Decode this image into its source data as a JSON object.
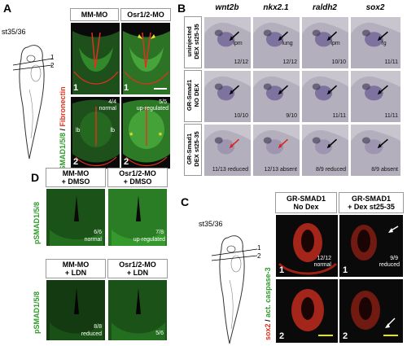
{
  "panelA": {
    "label": "A",
    "stage": "st35/36",
    "section_marks": [
      "1",
      "2"
    ],
    "col_headers": [
      "MM-MO",
      "Osr1/2-MO"
    ],
    "ylabel_green": "pSMAD1/5/8",
    "ylabel_sep": "/",
    "ylabel_red": "Fibronectin",
    "tiles": [
      {
        "num": "1",
        "count": "",
        "note": ""
      },
      {
        "num": "1",
        "count": "",
        "note": ""
      },
      {
        "num": "2",
        "count": "4/4",
        "note": "normal",
        "marks": [
          "lb",
          "lb"
        ]
      },
      {
        "num": "2",
        "count": "5/5",
        "note": "up-regulated",
        "marks": [
          "*",
          "*"
        ]
      }
    ]
  },
  "panelB": {
    "label": "B",
    "genes": [
      "wnt2b",
      "nkx2.1",
      "raldh2",
      "sox2"
    ],
    "row_labels": [
      [
        "uninjected",
        "DEX st25-35"
      ],
      [
        "GR-Smad1",
        "NO DEX"
      ],
      [
        "GR-Smad1",
        "DEX st25-35"
      ]
    ],
    "rows": [
      [
        {
          "tag": "lpm",
          "count": "12/12"
        },
        {
          "tag": "lung",
          "count": "12/12"
        },
        {
          "tag": "lpm",
          "count": "10/10"
        },
        {
          "tag": "fg",
          "count": "11/11"
        }
      ],
      [
        {
          "tag": "",
          "count": "10/10"
        },
        {
          "tag": "",
          "count": "9/10"
        },
        {
          "tag": "",
          "count": "11/11"
        },
        {
          "tag": "",
          "count": "11/11"
        }
      ],
      [
        {
          "tag": "",
          "count": "11/13 reduced"
        },
        {
          "tag": "",
          "count": "12/13 absent"
        },
        {
          "tag": "",
          "count": "8/9 reduced"
        },
        {
          "tag": "",
          "count": "8/9 absent"
        }
      ]
    ]
  },
  "panelD": {
    "label": "D",
    "ylabel": "pSMAD1/5/8",
    "top_headers": [
      [
        "MM-MO",
        "+ DMSO"
      ],
      [
        "Osr1/2-MO",
        "+ DMSO"
      ]
    ],
    "bottom_headers": [
      [
        "MM-MO",
        "+ LDN"
      ],
      [
        "Osr1/2-MO",
        "+ LDN"
      ]
    ],
    "tiles": [
      {
        "count": "6/6",
        "note": "normal"
      },
      {
        "count": "7/8",
        "note": "up-regulated"
      },
      {
        "count": "8/8",
        "note": "reduced"
      },
      {
        "count": "5/6",
        "note": ""
      }
    ]
  },
  "panelC": {
    "label": "C",
    "stage": "st35/36",
    "section_marks": [
      "1",
      "2"
    ],
    "col_headers": [
      [
        "GR-SMAD1",
        "No Dex"
      ],
      [
        "GR-SMAD1",
        "+ Dex st25-35"
      ]
    ],
    "ylabel_red": "sox2",
    "ylabel_sep": "/",
    "ylabel_green": "act. caspase-3",
    "tiles": [
      {
        "num": "1",
        "count": "12/12",
        "note": "normal"
      },
      {
        "num": "1",
        "count": "9/9",
        "note": "reduced"
      },
      {
        "num": "2",
        "count": "",
        "note": ""
      },
      {
        "num": "2",
        "count": "",
        "note": ""
      }
    ]
  },
  "colors": {
    "green_tissue": "#2f9a2a",
    "red_stain": "#e03020",
    "dark_bg": "#0a0a0a",
    "embryo_bg": "#c9c5cf",
    "arrow_black": "#000000",
    "arrow_red": "#e0201a",
    "scale_bar_white": "#ffffff",
    "scale_bar_yellow": "#e6e600",
    "star_yellow": "#f0e020"
  },
  "icons": [
    "tadpole-schematic-icon",
    "arrow-icon",
    "asterisk-icon"
  ]
}
